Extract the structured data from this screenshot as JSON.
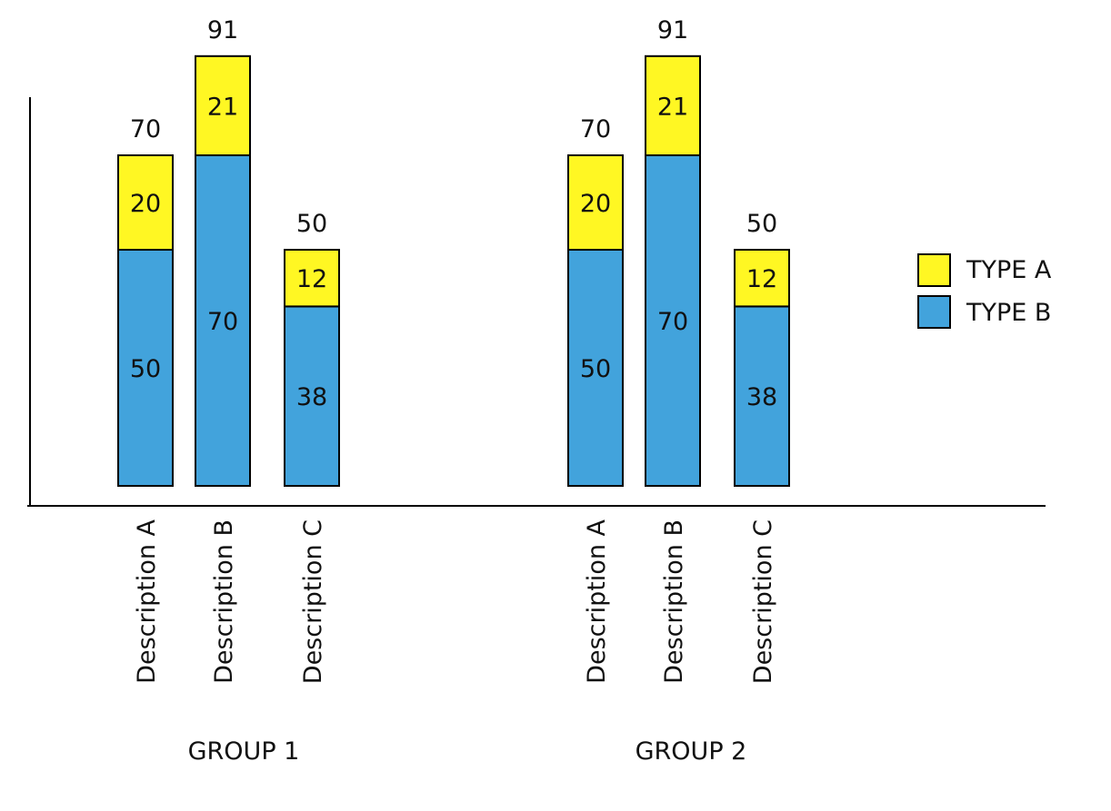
{
  "chart_data": {
    "type": "bar",
    "stacked": true,
    "title": "",
    "xlabel": "",
    "ylabel": "",
    "grid": false,
    "legend_position": "right",
    "colors": {
      "TYPE A": "#FFF723",
      "TYPE B": "#42A3DC"
    },
    "groups": [
      {
        "name": "GROUP 1",
        "categories": [
          "Description A",
          "Description B",
          "Description C"
        ],
        "series": [
          {
            "name": "TYPE B",
            "values": [
              50,
              70,
              38
            ]
          },
          {
            "name": "TYPE A",
            "values": [
              20,
              21,
              12
            ]
          }
        ],
        "totals": [
          70,
          91,
          50
        ]
      },
      {
        "name": "GROUP 2",
        "categories": [
          "Description A",
          "Description B",
          "Description C"
        ],
        "series": [
          {
            "name": "TYPE B",
            "values": [
              50,
              70,
              38
            ]
          },
          {
            "name": "TYPE A",
            "values": [
              20,
              21,
              12
            ]
          }
        ],
        "totals": [
          70,
          91,
          50
        ]
      }
    ],
    "legend": [
      "TYPE A",
      "TYPE B"
    ]
  }
}
